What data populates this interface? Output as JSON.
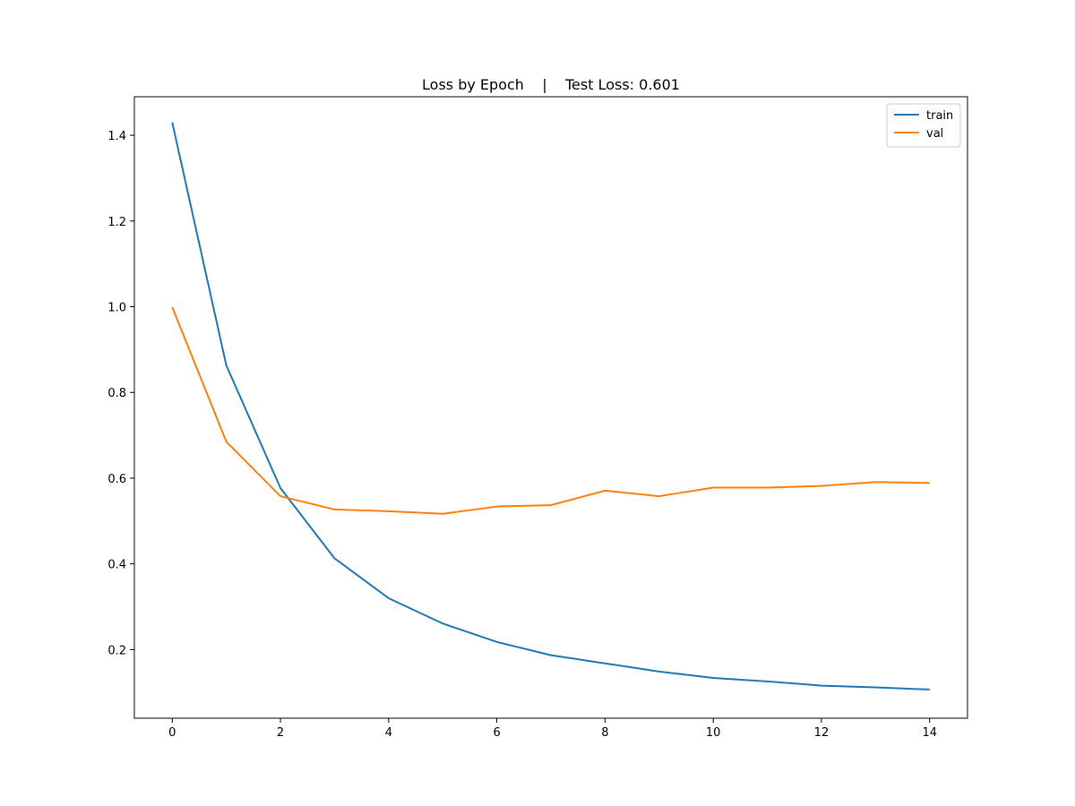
{
  "chart_data": {
    "type": "line",
    "title": "Loss by Epoch    |    Test Loss: 0.601",
    "xlabel": "",
    "ylabel": "",
    "x": [
      0,
      1,
      2,
      3,
      4,
      5,
      6,
      7,
      8,
      9,
      10,
      11,
      12,
      13,
      14
    ],
    "xlim": [
      -0.7,
      14.7
    ],
    "ylim": [
      0.04,
      1.49
    ],
    "x_ticks": [
      0,
      2,
      4,
      6,
      8,
      10,
      12,
      14
    ],
    "y_ticks": [
      0.2,
      0.4,
      0.6,
      0.8,
      1.0,
      1.2,
      1.4
    ],
    "x_tick_labels": [
      "0",
      "2",
      "4",
      "6",
      "8",
      "10",
      "12",
      "14"
    ],
    "y_tick_labels": [
      "0.2",
      "0.4",
      "0.6",
      "0.8",
      "1.0",
      "1.2",
      "1.4"
    ],
    "grid": false,
    "legend_position": "top-right",
    "series": [
      {
        "name": "train",
        "color": "#1f77b4",
        "values": [
          1.43,
          0.863,
          0.577,
          0.413,
          0.32,
          0.261,
          0.218,
          0.187,
          0.168,
          0.149,
          0.134,
          0.126,
          0.116,
          0.112,
          0.107
        ]
      },
      {
        "name": "val",
        "color": "#ff7f0e",
        "values": [
          0.999,
          0.685,
          0.558,
          0.527,
          0.523,
          0.517,
          0.534,
          0.537,
          0.571,
          0.558,
          0.578,
          0.578,
          0.582,
          0.591,
          0.589
        ]
      }
    ]
  }
}
